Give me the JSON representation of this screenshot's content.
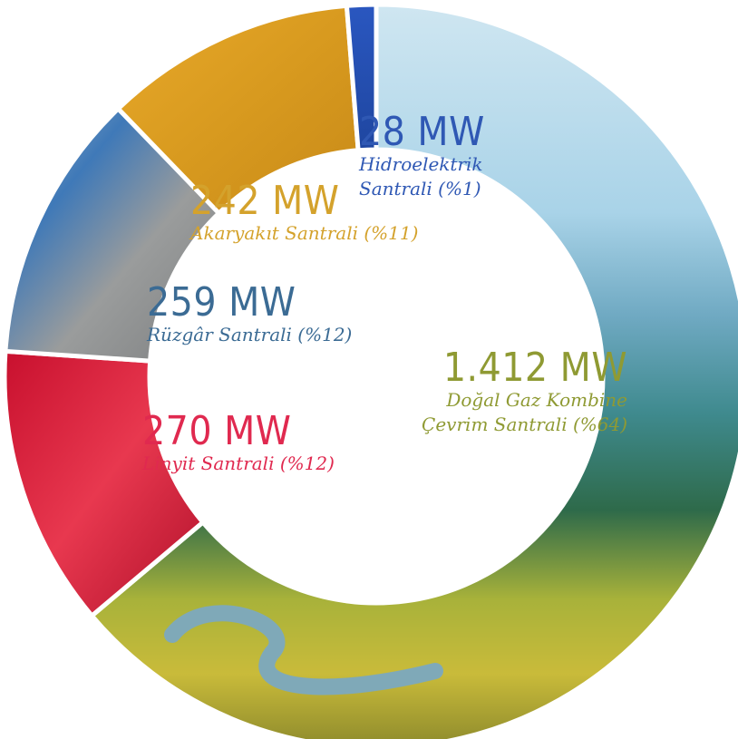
{
  "chart_data": {
    "type": "pie",
    "donut": true,
    "unit": "MW",
    "slices": [
      {
        "label": "Doğal Gaz Kombine Çevrim Santrali (%64)",
        "value": 1412,
        "percent": 64,
        "value_text": "1.412 MW",
        "label_lines": [
          "Doğal Gaz Kombine",
          "Çevrim Santrali (%64)"
        ],
        "color": "#8f9a33",
        "texture": "landscape"
      },
      {
        "label": "Linyit Santrali (%12)",
        "value": 270,
        "percent": 12,
        "value_text": "270 MW",
        "label_lines": [
          "Linyit Santrali (%12)"
        ],
        "color": "#e0294f",
        "texture": "red-paint"
      },
      {
        "label": "Rüzgâr Santrali (%12)",
        "value": 259,
        "percent": 12,
        "value_text": "259 MW",
        "label_lines": [
          "Rüzgâr Santrali (%12)"
        ],
        "color": "#3b6b94",
        "texture": "gray-blue-paint"
      },
      {
        "label": "Akaryakıt Santrali (%11)",
        "value": 242,
        "percent": 11,
        "value_text": "242 MW",
        "label_lines": [
          "Akaryakıt Santrali (%11)"
        ],
        "color": "#d4a22c",
        "texture": "golden-paint"
      },
      {
        "label": "Hidroelektrik Santrali (%1)",
        "value": 28,
        "percent": 1,
        "value_text": "28 MW",
        "label_lines": [
          "Hidroelektrik",
          "Santrali (%1)"
        ],
        "color": "#2f58b4",
        "texture": "blue-paint"
      }
    ]
  }
}
